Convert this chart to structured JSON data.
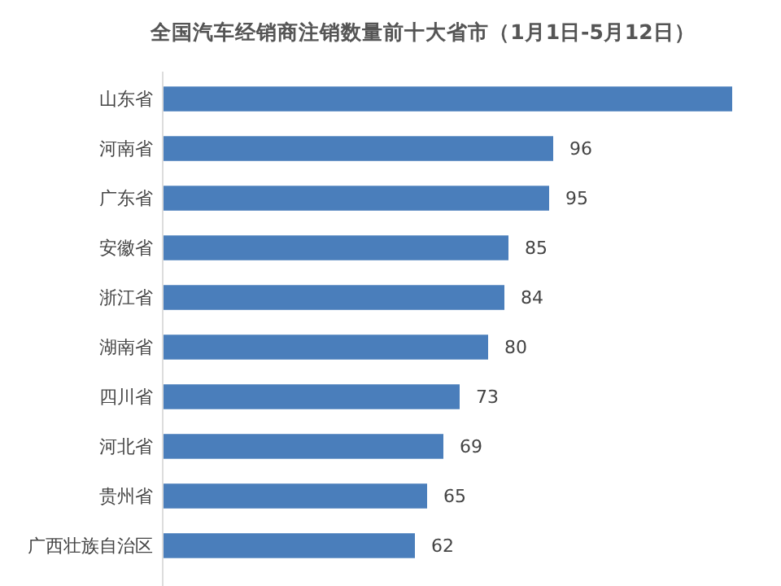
{
  "chart_data": {
    "type": "bar",
    "orientation": "horizontal",
    "title": "全国汽车经销商注销数量前十大省市（1月1日-5月12日）",
    "categories": [
      "山东省",
      "河南省",
      "广东省",
      "安徽省",
      "浙江省",
      "湖南省",
      "四川省",
      "河北省",
      "贵州省",
      "广西壮族自治区"
    ],
    "values": [
      140,
      96,
      95,
      85,
      84,
      80,
      73,
      69,
      65,
      62
    ],
    "value_labels": [
      null,
      "96",
      "95",
      "85",
      "84",
      "80",
      "73",
      "69",
      "65",
      "62"
    ],
    "color": "#4a7ebb"
  }
}
